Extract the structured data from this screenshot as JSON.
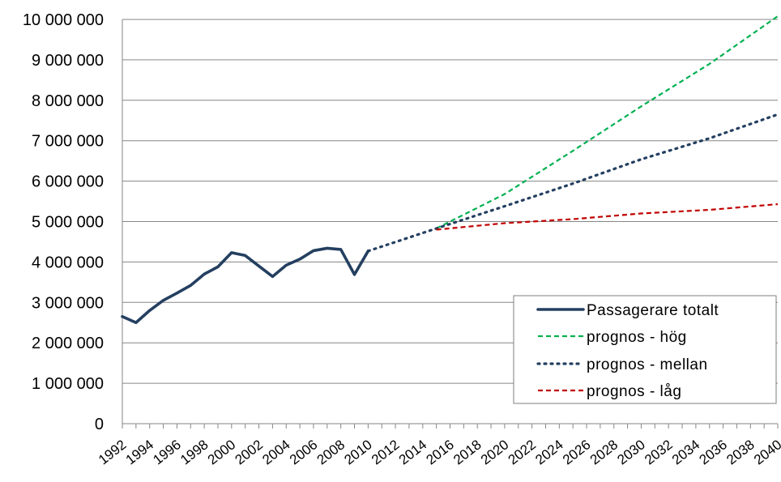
{
  "chart_data": {
    "type": "line",
    "x": [
      1992,
      1993,
      1994,
      1995,
      1996,
      1997,
      1998,
      1999,
      2000,
      2001,
      2002,
      2003,
      2004,
      2005,
      2006,
      2007,
      2008,
      2009,
      2010,
      2011,
      2012,
      2013,
      2014,
      2015,
      2016,
      2017,
      2018,
      2019,
      2020,
      2021,
      2022,
      2023,
      2024,
      2025,
      2026,
      2027,
      2028,
      2029,
      2030,
      2031,
      2032,
      2033,
      2034,
      2035,
      2036,
      2037,
      2038,
      2039,
      2040
    ],
    "x_tick_labels": [
      "1992",
      "1994",
      "1996",
      "1998",
      "2000",
      "2002",
      "2004",
      "2006",
      "2008",
      "2010",
      "2012",
      "2014",
      "2016",
      "2018",
      "2020",
      "2022",
      "2024",
      "2026",
      "2028",
      "2030",
      "2032",
      "2034",
      "2036",
      "2038",
      "2040"
    ],
    "ylim": [
      0,
      10000000
    ],
    "y_ticks": [
      0,
      1000000,
      2000000,
      3000000,
      4000000,
      5000000,
      6000000,
      7000000,
      8000000,
      9000000,
      10000000
    ],
    "y_tick_labels": [
      "0",
      "1 000 000",
      "2 000 000",
      "3 000 000",
      "4 000 000",
      "5 000 000",
      "6 000 000",
      "7 000 000",
      "8 000 000",
      "9 000 000",
      "10 000 000"
    ],
    "grid": "horizontal",
    "legend_position": "bottom-right",
    "series": [
      {
        "name": "Passagerare totalt",
        "color": "#243F60",
        "style": "solid",
        "x": [
          1992,
          1993,
          1994,
          1995,
          1996,
          1997,
          1998,
          1999,
          2000,
          2001,
          2002,
          2003,
          2004,
          2005,
          2006,
          2007,
          2008,
          2009,
          2010
        ],
        "values": [
          2650000,
          2500000,
          2800000,
          3050000,
          3230000,
          3420000,
          3700000,
          3880000,
          4230000,
          4160000,
          3900000,
          3640000,
          3920000,
          4070000,
          4280000,
          4340000,
          4310000,
          3690000,
          4270000
        ]
      },
      {
        "name": "prognos - hög",
        "color": "#00B050",
        "style": "dashed",
        "x": [
          2015,
          2020,
          2025,
          2030,
          2035,
          2040
        ],
        "values": [
          4830000,
          5680000,
          6750000,
          7850000,
          8900000,
          10080000
        ]
      },
      {
        "name": "prognos - mellan",
        "color": "#243F60",
        "style": "dotted",
        "x": [
          2010,
          2015,
          2020,
          2025,
          2030,
          2035,
          2040
        ],
        "values": [
          4270000,
          4830000,
          5380000,
          5940000,
          6540000,
          7060000,
          7650000
        ]
      },
      {
        "name": "prognos - låg",
        "color": "#C00000",
        "style": "dashed",
        "x": [
          2015,
          2020,
          2025,
          2030,
          2035,
          2040
        ],
        "values": [
          4800000,
          4960000,
          5060000,
          5200000,
          5290000,
          5430000
        ]
      }
    ]
  }
}
